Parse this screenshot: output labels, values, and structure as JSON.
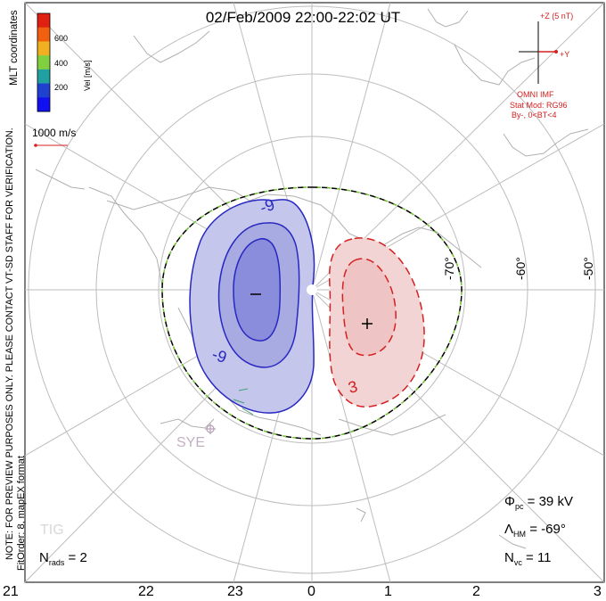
{
  "title": "02/Feb/2009  22:00-22:02 UT",
  "side_text": {
    "coordinates": "MLT coordinates",
    "note_upper": "NOTE: FOR PREVIEW PURPOSES ONLY. PLEASE CONTACT VT-SD STAFF FOR VERIFICATION.",
    "note_lower": "FitOrder: 8, mapEX format"
  },
  "colorbar": {
    "label": "Vel [m/s]",
    "ticks": [
      "600",
      "400",
      "200"
    ],
    "colors": [
      "#e02010",
      "#f06010",
      "#f0b020",
      "#80d040",
      "#20a0a0",
      "#2040d0",
      "#1010f0"
    ]
  },
  "vector_scale": "1000 m/s",
  "imf": {
    "z_label": "+Z (5 nT)",
    "y_label": "+Y",
    "source": "OMNI IMF",
    "model": "Stat Mod: RG96",
    "condition": "By-, 0<BT<4"
  },
  "latitude_labels": [
    "-70°",
    "-60°",
    "-50°"
  ],
  "station_labels": [
    "SYE",
    "TIG"
  ],
  "contour_labels": [
    "-9",
    "-9",
    "3"
  ],
  "mlt_labels": [
    "21",
    "22",
    "23",
    "0",
    "1",
    "2",
    "3"
  ],
  "stats": {
    "phi_pc": "39 kV",
    "lambda_hm": "-69°",
    "n_vc": "11",
    "n_rads": "2"
  },
  "colors": {
    "negative_cell": "#2828c0",
    "negative_fill": "#c4c6ec",
    "positive_cell": "#d42020",
    "positive_fill": "#f2d4d4",
    "hm_boundary": "#70c030",
    "grid": "#c0c0c0",
    "coast": "#b0b0b0"
  }
}
